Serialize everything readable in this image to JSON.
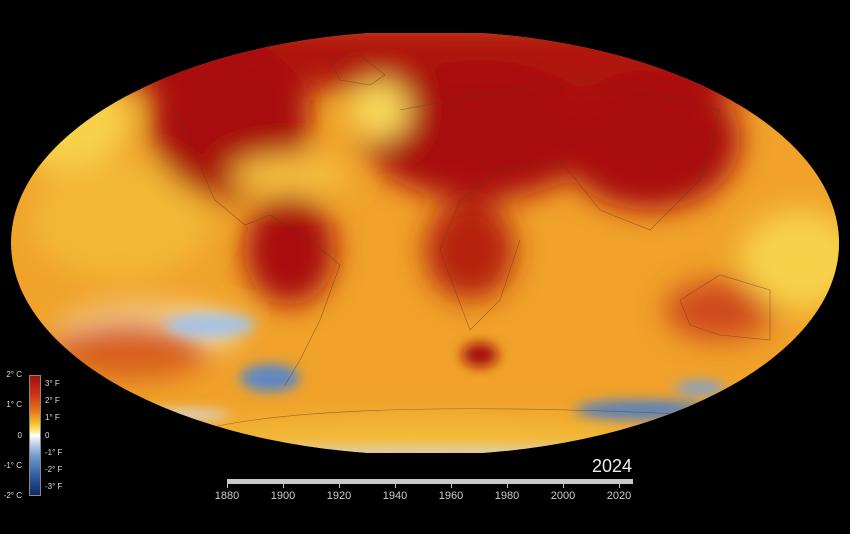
{
  "legend": {
    "celsius_labels": [
      "2° C",
      "1° C",
      "0",
      "-1° C",
      "-2° C"
    ],
    "fahrenheit_labels": [
      "3° F",
      "2° F",
      "1° F",
      "0",
      "-1° F",
      "-2° F",
      "-3° F"
    ],
    "colors": {
      "hot": "#a50f0f",
      "warm": "#e8781e",
      "mild": "#f5c22a",
      "neutral": "#ffffff",
      "cool": "#6e98cc",
      "cold": "#0d2a60"
    }
  },
  "timeline": {
    "current_year": "2024",
    "start_year": 1880,
    "end_year": 2024,
    "progress_percent": 100,
    "tick_labels": [
      "1880",
      "1900",
      "1920",
      "1940",
      "1960",
      "1980",
      "2000",
      "2020"
    ]
  }
}
